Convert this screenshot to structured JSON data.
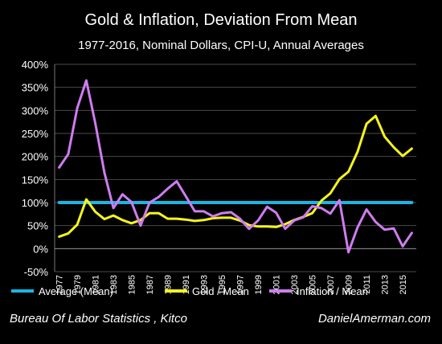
{
  "title": "Gold & Inflation, Deviation From Mean",
  "subtitle": "1977-2016, Nominal Dollars, CPI-U, Annual Averages",
  "footer": {
    "left": "Bureau Of Labor Statistics , Kitco",
    "right": "DanielAmerman.com"
  },
  "colors": {
    "background": "#000000",
    "average": "#1ab5e3",
    "gold": "#f5f51a",
    "inflation": "#cf7cf0",
    "grid": "#4a4a4a"
  },
  "chart_data": {
    "type": "line",
    "title": "Gold & Inflation, Deviation From Mean",
    "subtitle": "1977-2016, Nominal Dollars, CPI-U, Annual Averages",
    "ylim": [
      -50,
      400
    ],
    "ytick_step": 50,
    "yticks": [
      "-50%",
      "0%",
      "50%",
      "100%",
      "150%",
      "200%",
      "250%",
      "300%",
      "350%",
      "400%"
    ],
    "xtick_labels": [
      "1977",
      "1979",
      "1981",
      "1983",
      "1985",
      "1987",
      "1989",
      "1991",
      "1993",
      "1995",
      "1997",
      "1999",
      "2001",
      "2003",
      "2005",
      "2007",
      "2009",
      "2011",
      "2013",
      "2015"
    ],
    "x": [
      1977,
      1978,
      1979,
      1980,
      1981,
      1982,
      1983,
      1984,
      1985,
      1986,
      1987,
      1988,
      1989,
      1990,
      1991,
      1992,
      1993,
      1994,
      1995,
      1996,
      1997,
      1998,
      1999,
      2000,
      2001,
      2002,
      2003,
      2004,
      2005,
      2006,
      2007,
      2008,
      2009,
      2010,
      2011,
      2012,
      2013,
      2014,
      2015,
      2016
    ],
    "grid": true,
    "legend_position": "bottom",
    "series": [
      {
        "name": "Average (Mean)",
        "values": [
          100,
          100,
          100,
          100,
          100,
          100,
          100,
          100,
          100,
          100,
          100,
          100,
          100,
          100,
          100,
          100,
          100,
          100,
          100,
          100,
          100,
          100,
          100,
          100,
          100,
          100,
          100,
          100,
          100,
          100,
          100,
          100,
          100,
          100,
          100,
          100,
          100,
          100,
          100,
          100
        ]
      },
      {
        "name": "Gold / Mean",
        "values": [
          26,
          33,
          52,
          107,
          80,
          64,
          72,
          62,
          55,
          62,
          77,
          77,
          65,
          65,
          63,
          60,
          62,
          66,
          67,
          67,
          61,
          51,
          48,
          48,
          47,
          53,
          62,
          69,
          77,
          104,
          120,
          151,
          167,
          210,
          271,
          288,
          243,
          220,
          201,
          217
        ]
      },
      {
        "name": "Inflation / Mean",
        "values": [
          176,
          205,
          305,
          365,
          272,
          165,
          88,
          118,
          101,
          50,
          100,
          112,
          130,
          146,
          114,
          81,
          81,
          70,
          77,
          79,
          65,
          43,
          61,
          91,
          78,
          43,
          61,
          68,
          92,
          88,
          76,
          105,
          -8,
          46,
          85,
          58,
          41,
          44,
          5,
          34
        ]
      }
    ]
  }
}
